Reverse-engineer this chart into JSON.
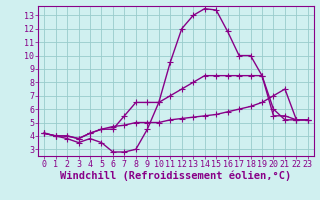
{
  "xlabel": "Windchill (Refroidissement éolien,°C)",
  "xlim": [
    -0.5,
    23.5
  ],
  "ylim": [
    2.5,
    13.7
  ],
  "yticks": [
    3,
    4,
    5,
    6,
    7,
    8,
    9,
    10,
    11,
    12,
    13
  ],
  "xticks": [
    0,
    1,
    2,
    3,
    4,
    5,
    6,
    7,
    8,
    9,
    10,
    11,
    12,
    13,
    14,
    15,
    16,
    17,
    18,
    19,
    20,
    21,
    22,
    23
  ],
  "bg_color": "#d0f0f0",
  "line_color": "#880088",
  "grid_color": "#99cccc",
  "lines": [
    {
      "x": [
        0,
        1,
        2,
        3,
        4,
        5,
        6,
        7,
        8,
        9,
        10,
        11,
        12,
        13,
        14,
        15,
        16,
        17,
        18,
        19,
        20,
        21,
        22,
        23
      ],
      "y": [
        4.2,
        4.0,
        3.8,
        3.5,
        3.8,
        3.5,
        2.8,
        2.8,
        3.0,
        4.5,
        6.5,
        9.5,
        12.0,
        13.0,
        13.5,
        13.4,
        11.8,
        10.0,
        10.0,
        8.5,
        5.5,
        5.5,
        5.2,
        5.2
      ]
    },
    {
      "x": [
        0,
        1,
        2,
        3,
        4,
        5,
        6,
        7,
        8,
        9,
        10,
        11,
        12,
        13,
        14,
        15,
        16,
        17,
        18,
        19,
        20,
        21,
        22,
        23
      ],
      "y": [
        4.2,
        4.0,
        4.0,
        3.8,
        4.2,
        4.5,
        4.5,
        5.5,
        6.5,
        6.5,
        6.5,
        7.0,
        7.5,
        8.0,
        8.5,
        8.5,
        8.5,
        8.5,
        8.5,
        8.5,
        6.0,
        5.2,
        5.2,
        5.2
      ]
    },
    {
      "x": [
        0,
        1,
        2,
        3,
        4,
        5,
        6,
        7,
        8,
        9,
        10,
        11,
        12,
        13,
        14,
        15,
        16,
        17,
        18,
        19,
        20,
        21,
        22,
        23
      ],
      "y": [
        4.2,
        4.0,
        4.0,
        3.8,
        4.2,
        4.5,
        4.7,
        4.8,
        5.0,
        5.0,
        5.0,
        5.2,
        5.3,
        5.4,
        5.5,
        5.6,
        5.8,
        6.0,
        6.2,
        6.5,
        7.0,
        7.5,
        5.2,
        5.2
      ]
    }
  ],
  "marker": "+",
  "markersize": 4,
  "linewidth": 1.0,
  "tick_fontsize": 6,
  "xlabel_fontsize": 7.5
}
